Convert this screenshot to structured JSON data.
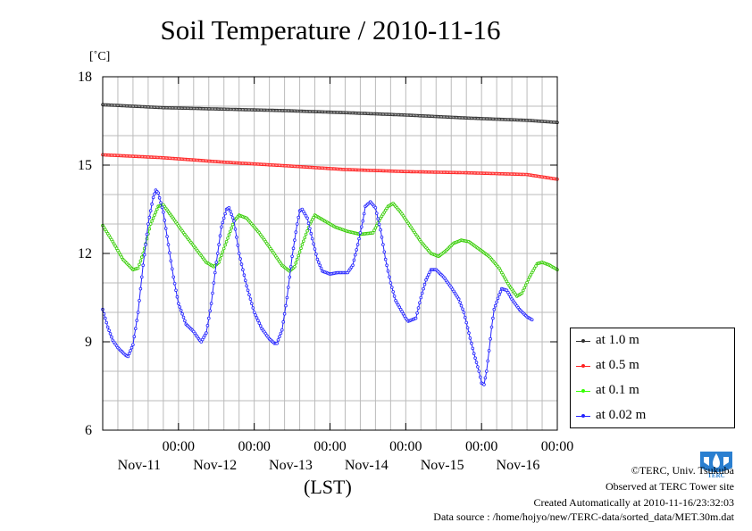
{
  "title": "Soil Temperature / 2010-11-16",
  "unit_label": "[˚C]",
  "xaxis_label": "(LST)",
  "credits": [
    "©TERC, Univ. Tsukuba",
    "Observed at TERC Tower site",
    "Created Automatically at 2010-11-16/23:32:03",
    "Data source : /home/hojyo/new/TERC-data/sorted_data/MET.30m.dat"
  ],
  "logo_text": "TERC",
  "chart_data": {
    "type": "line",
    "title": "Soil Temperature / 2010-11-16",
    "xlabel": "(LST)",
    "ylabel": "[˚C]",
    "ylim": [
      6,
      18
    ],
    "yticks": [
      6,
      9,
      12,
      15,
      18
    ],
    "xlim_hours": [
      -12,
      168
    ],
    "xticks": [
      {
        "time": "00:00",
        "date": "Nov-11",
        "hour": 18
      },
      {
        "time": "00:00",
        "date": "Nov-12",
        "hour": 48
      },
      {
        "time": "00:00",
        "date": "Nov-13",
        "hour": 78
      },
      {
        "time": "00:00",
        "date": "Nov-14",
        "hour": 108
      },
      {
        "time": "00:00",
        "date": "Nov-15",
        "hour": 138
      },
      {
        "time": "00:00",
        "date": "Nov-16",
        "hour": 168
      }
    ],
    "grid": true,
    "legend_position": "right",
    "series": [
      {
        "name": "at 1.0 m",
        "color": "#303030",
        "points": [
          [
            -12,
            17.05
          ],
          [
            12,
            16.95
          ],
          [
            36,
            16.9
          ],
          [
            60,
            16.85
          ],
          [
            84,
            16.78
          ],
          [
            108,
            16.7
          ],
          [
            132,
            16.6
          ],
          [
            156,
            16.52
          ],
          [
            168,
            16.45
          ]
        ]
      },
      {
        "name": "at 0.5 m",
        "color": "#ff2020",
        "points": [
          [
            -12,
            15.35
          ],
          [
            12,
            15.25
          ],
          [
            36,
            15.1
          ],
          [
            60,
            14.98
          ],
          [
            84,
            14.85
          ],
          [
            108,
            14.78
          ],
          [
            132,
            14.74
          ],
          [
            156,
            14.68
          ],
          [
            168,
            14.52
          ]
        ]
      },
      {
        "name": "at 0.1 m",
        "color": "#33ff00",
        "points": [
          [
            -12,
            12.95
          ],
          [
            -8,
            12.4
          ],
          [
            -4,
            11.8
          ],
          [
            0,
            11.45
          ],
          [
            2,
            11.5
          ],
          [
            4,
            12.0
          ],
          [
            7,
            13.0
          ],
          [
            10,
            13.6
          ],
          [
            12,
            13.65
          ],
          [
            15,
            13.3
          ],
          [
            20,
            12.7
          ],
          [
            25,
            12.15
          ],
          [
            29,
            11.7
          ],
          [
            32,
            11.55
          ],
          [
            34,
            11.7
          ],
          [
            37,
            12.4
          ],
          [
            40,
            13.1
          ],
          [
            42,
            13.3
          ],
          [
            45,
            13.2
          ],
          [
            50,
            12.7
          ],
          [
            55,
            12.1
          ],
          [
            59,
            11.6
          ],
          [
            62,
            11.4
          ],
          [
            64,
            11.55
          ],
          [
            67,
            12.3
          ],
          [
            70,
            13.0
          ],
          [
            72,
            13.3
          ],
          [
            75,
            13.15
          ],
          [
            80,
            12.9
          ],
          [
            85,
            12.75
          ],
          [
            90,
            12.65
          ],
          [
            95,
            12.7
          ],
          [
            98,
            13.2
          ],
          [
            101,
            13.6
          ],
          [
            103,
            13.7
          ],
          [
            106,
            13.4
          ],
          [
            110,
            12.9
          ],
          [
            114,
            12.4
          ],
          [
            118,
            12.0
          ],
          [
            121,
            11.9
          ],
          [
            124,
            12.1
          ],
          [
            127,
            12.35
          ],
          [
            130,
            12.45
          ],
          [
            133,
            12.4
          ],
          [
            137,
            12.15
          ],
          [
            141,
            11.9
          ],
          [
            145,
            11.5
          ],
          [
            149,
            10.9
          ],
          [
            152,
            10.55
          ],
          [
            154,
            10.65
          ],
          [
            157,
            11.2
          ],
          [
            160,
            11.65
          ],
          [
            162,
            11.7
          ],
          [
            165,
            11.6
          ],
          [
            168,
            11.45
          ]
        ]
      },
      {
        "name": "at 0.02 m",
        "color": "#2222ff",
        "points": [
          [
            -12,
            10.1
          ],
          [
            -10,
            9.5
          ],
          [
            -8,
            9.05
          ],
          [
            -6,
            8.8
          ],
          [
            -3,
            8.55
          ],
          [
            -2,
            8.5
          ],
          [
            0,
            8.9
          ],
          [
            2,
            10.0
          ],
          [
            4,
            11.6
          ],
          [
            6,
            13.0
          ],
          [
            8,
            13.9
          ],
          [
            9,
            14.15
          ],
          [
            10,
            14.05
          ],
          [
            12,
            13.4
          ],
          [
            14,
            12.3
          ],
          [
            16,
            11.2
          ],
          [
            18,
            10.3
          ],
          [
            21,
            9.6
          ],
          [
            24,
            9.35
          ],
          [
            26,
            9.1
          ],
          [
            27,
            9.0
          ],
          [
            29,
            9.3
          ],
          [
            31,
            10.3
          ],
          [
            33,
            11.7
          ],
          [
            35,
            12.9
          ],
          [
            37,
            13.5
          ],
          [
            38,
            13.55
          ],
          [
            40,
            13.1
          ],
          [
            42,
            12.0
          ],
          [
            45,
            10.9
          ],
          [
            48,
            10.0
          ],
          [
            51,
            9.45
          ],
          [
            54,
            9.1
          ],
          [
            56,
            8.95
          ],
          [
            57,
            8.95
          ],
          [
            59,
            9.4
          ],
          [
            61,
            10.5
          ],
          [
            63,
            11.9
          ],
          [
            65,
            13.0
          ],
          [
            66,
            13.45
          ],
          [
            67,
            13.5
          ],
          [
            69,
            13.2
          ],
          [
            71,
            12.5
          ],
          [
            73,
            11.8
          ],
          [
            75,
            11.4
          ],
          [
            78,
            11.3
          ],
          [
            81,
            11.35
          ],
          [
            85,
            11.35
          ],
          [
            87,
            11.6
          ],
          [
            89,
            12.3
          ],
          [
            91,
            13.1
          ],
          [
            92,
            13.6
          ],
          [
            94,
            13.75
          ],
          [
            96,
            13.55
          ],
          [
            98,
            12.8
          ],
          [
            100,
            11.8
          ],
          [
            102,
            11.0
          ],
          [
            104,
            10.4
          ],
          [
            106,
            10.1
          ],
          [
            108,
            9.8
          ],
          [
            109,
            9.7
          ],
          [
            112,
            9.8
          ],
          [
            114,
            10.5
          ],
          [
            116,
            11.1
          ],
          [
            118,
            11.45
          ],
          [
            120,
            11.45
          ],
          [
            123,
            11.2
          ],
          [
            126,
            10.85
          ],
          [
            129,
            10.45
          ],
          [
            131,
            10.0
          ],
          [
            133,
            9.3
          ],
          [
            135,
            8.6
          ],
          [
            137,
            8.0
          ],
          [
            138,
            7.6
          ],
          [
            139,
            7.55
          ],
          [
            140,
            8.0
          ],
          [
            141,
            8.7
          ],
          [
            142,
            9.5
          ],
          [
            143,
            10.1
          ],
          [
            145,
            10.6
          ],
          [
            146,
            10.8
          ],
          [
            148,
            10.75
          ],
          [
            150,
            10.45
          ],
          [
            153,
            10.1
          ],
          [
            156,
            9.85
          ],
          [
            158,
            9.75
          ]
        ]
      }
    ]
  }
}
